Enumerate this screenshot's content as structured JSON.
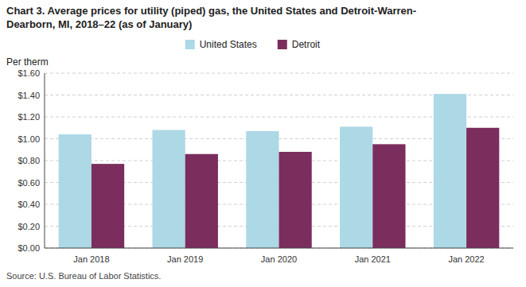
{
  "chart_data": {
    "type": "bar",
    "title": [
      "Chart 3. Average prices for utility (piped) gas, the United States and Detroit-Warren-",
      "Dearborn, MI, 2018–22 (as of January)"
    ],
    "y_label": "Per therm",
    "annotations": [
      "Source: U.S. Bureau of Labor Statistics."
    ],
    "categories": [
      "Jan 2018",
      "Jan 2019",
      "Jan 2020",
      "Jan 2021",
      "Jan 2022"
    ],
    "series": [
      {
        "name": "United States",
        "color": "#add8e6",
        "values": [
          1.04,
          1.08,
          1.07,
          1.11,
          1.41
        ]
      },
      {
        "name": "Detroit",
        "color": "#7B2D5E",
        "values": [
          0.77,
          0.86,
          0.88,
          0.95,
          1.1
        ]
      }
    ],
    "ylim": [
      0.0,
      1.6
    ],
    "yticks": [
      {
        "value": 0.0,
        "label": "$0.00"
      },
      {
        "value": 0.2,
        "label": "$0.20"
      },
      {
        "value": 0.4,
        "label": "$0.40"
      },
      {
        "value": 0.6,
        "label": "$0.60"
      },
      {
        "value": 0.8,
        "label": "$0.80"
      },
      {
        "value": 1.0,
        "label": "$1.00"
      },
      {
        "value": 1.2,
        "label": "$1.20"
      },
      {
        "value": 1.4,
        "label": "$1.40"
      },
      {
        "value": 1.6,
        "label": "$1.60"
      }
    ],
    "grid": true,
    "legend": "top"
  }
}
